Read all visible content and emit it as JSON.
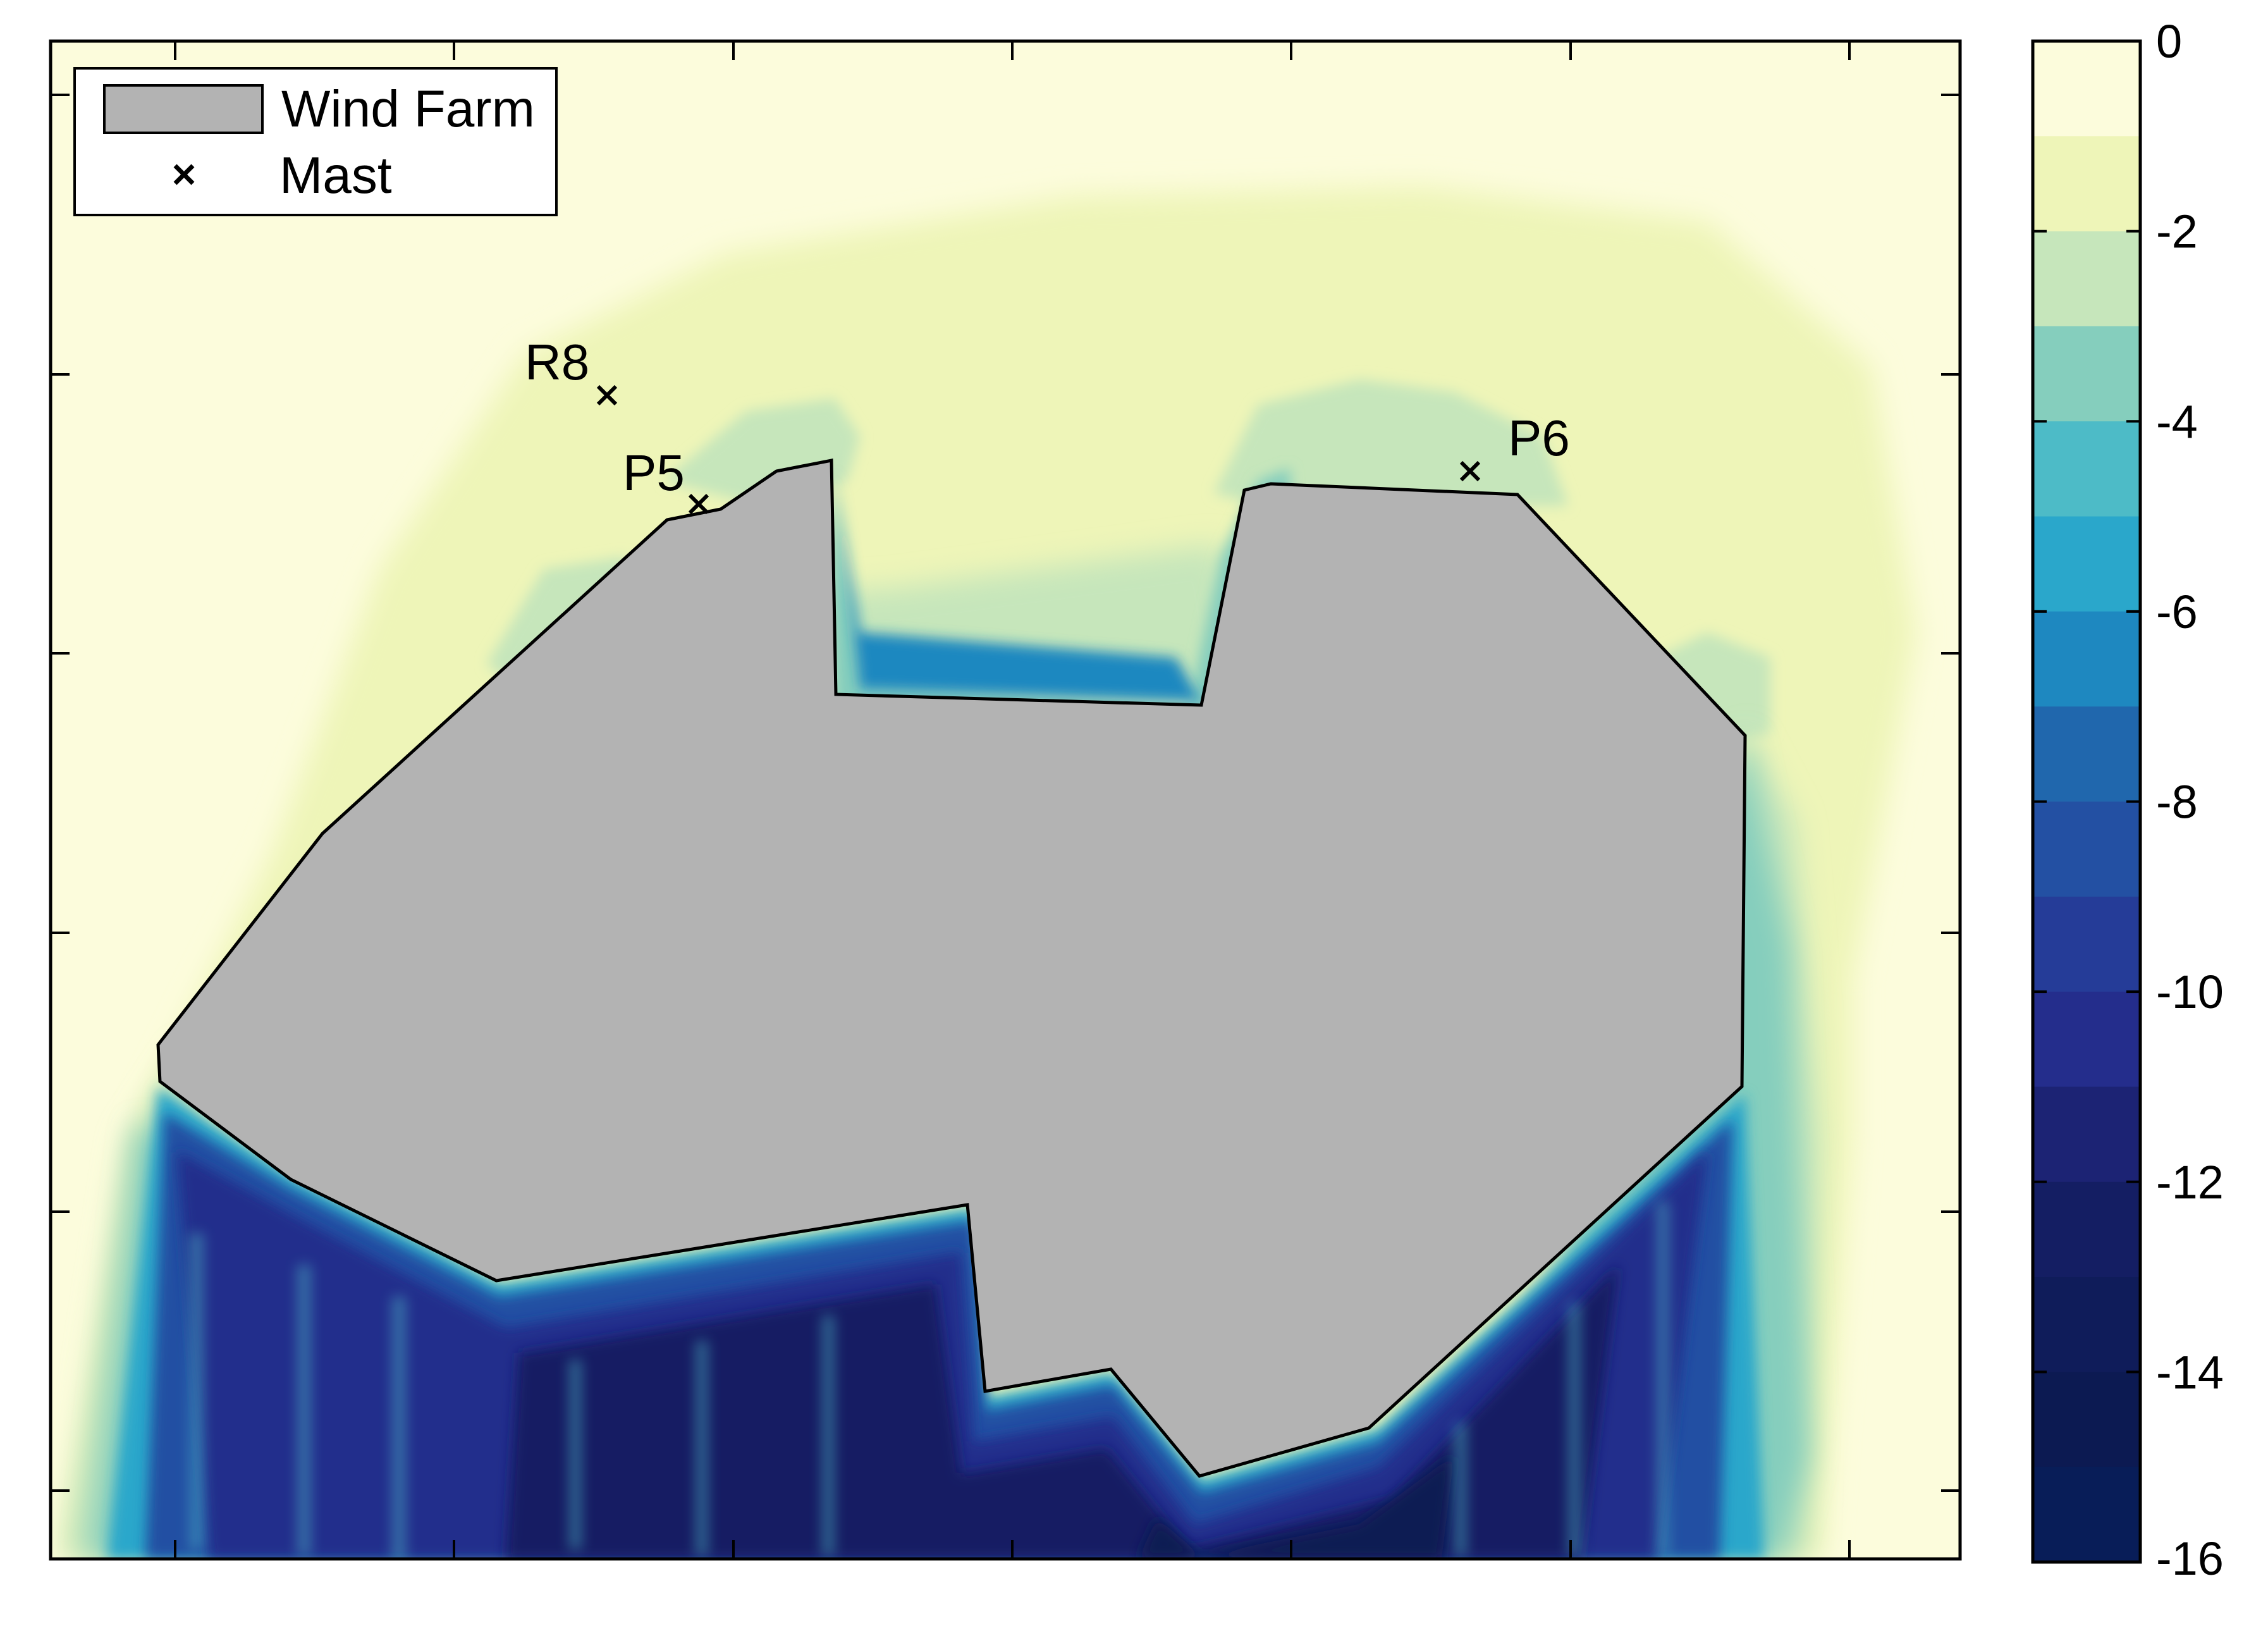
{
  "chart_data": {
    "type": "heatmap",
    "title": "",
    "xlabel": "",
    "ylabel": "",
    "legend": {
      "placement": "top-left",
      "entries": [
        {
          "label": "Wind Farm",
          "symbol": "gray-patch"
        },
        {
          "label": "Mast",
          "symbol": "x-marker"
        }
      ]
    },
    "masts": [
      {
        "label": "R8"
      },
      {
        "label": "P5"
      },
      {
        "label": "P6"
      }
    ],
    "colorbar": {
      "range": [
        -16,
        0
      ],
      "tick_labels": [
        "0",
        "-2",
        "-4",
        "-6",
        "-8",
        "-10",
        "-12",
        "-14",
        "-16"
      ],
      "level_step": 1,
      "levels_top_to_bottom": [
        {
          "from": 0,
          "to": -1,
          "color": "#fcfcdc"
        },
        {
          "from": -1,
          "to": -2,
          "color": "#eef5b8"
        },
        {
          "from": -2,
          "to": -3,
          "color": "#c6e6bb"
        },
        {
          "from": -3,
          "to": -4,
          "color": "#85cebd"
        },
        {
          "from": -4,
          "to": -5,
          "color": "#4dbbc7"
        },
        {
          "from": -5,
          "to": -6,
          "color": "#2aa7cb"
        },
        {
          "from": -6,
          "to": -7,
          "color": "#1e88c0"
        },
        {
          "from": -7,
          "to": -8,
          "color": "#2067ad"
        },
        {
          "from": -8,
          "to": -9,
          "color": "#2350a3"
        },
        {
          "from": -9,
          "to": -10,
          "color": "#253c98"
        },
        {
          "from": -10,
          "to": -11,
          "color": "#242d8c"
        },
        {
          "from": -11,
          "to": -12,
          "color": "#1c2374"
        },
        {
          "from": -12,
          "to": -13,
          "color": "#141e63"
        },
        {
          "from": -13,
          "to": -14,
          "color": "#0f1c5a"
        },
        {
          "from": -14,
          "to": -15,
          "color": "#0c1a52"
        },
        {
          "from": -15,
          "to": -16,
          "color": "#081d58"
        }
      ]
    },
    "farm_color": "#b3b3b3",
    "grid": false
  }
}
